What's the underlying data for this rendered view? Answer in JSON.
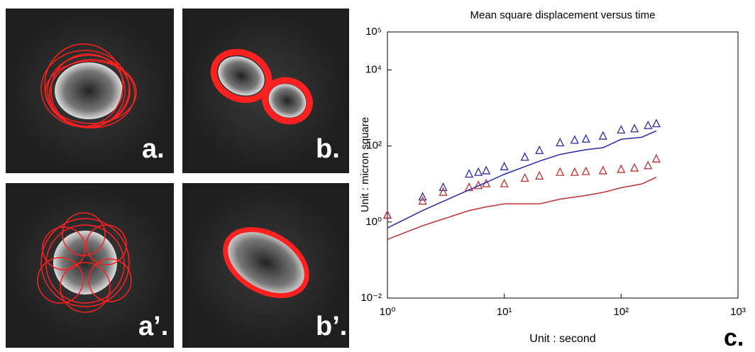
{
  "panels": {
    "a": "a.",
    "b": "b.",
    "a2": "a’.",
    "b2": "b’.",
    "c": "c."
  },
  "chart_data": {
    "type": "scatter",
    "title": "Mean square displacement versus time",
    "x_label": "Unit : second",
    "y_label": "Unit : micron square",
    "log_x": true,
    "log_y": true,
    "xlim": [
      1,
      1000
    ],
    "ylim": [
      0.01,
      100000
    ],
    "xticks": [
      {
        "value": 1,
        "label": "10⁰"
      },
      {
        "value": 10,
        "label": "10¹"
      },
      {
        "value": 100,
        "label": "10²"
      },
      {
        "value": 1000,
        "label": "10³"
      }
    ],
    "yticks": [
      {
        "value": 0.01,
        "label": "10⁻²"
      },
      {
        "value": 1,
        "label": "10⁰"
      },
      {
        "value": 100,
        "label": "10²"
      },
      {
        "value": 10000,
        "label": "10⁴"
      },
      {
        "value": 100000,
        "label": "10⁵"
      }
    ],
    "series": [
      {
        "color": "#2a2aa8",
        "marker": "triangle",
        "x": [
          1,
          2,
          3,
          5,
          6,
          7,
          10,
          15,
          20,
          30,
          40,
          50,
          70,
          100,
          130,
          170,
          200
        ],
        "values": [
          1.5,
          4.5,
          8,
          18,
          20,
          22,
          28,
          50,
          75,
          120,
          140,
          150,
          180,
          260,
          280,
          340,
          380
        ]
      },
      {
        "color": "#c03030",
        "marker": "triangle",
        "x": [
          1,
          2,
          3,
          5,
          6,
          7,
          10,
          15,
          20,
          30,
          40,
          50,
          70,
          100,
          130,
          170,
          200
        ],
        "values": [
          1.5,
          3.5,
          6,
          8,
          9,
          10,
          10,
          14,
          16,
          20,
          20,
          21,
          22,
          24,
          26,
          30,
          45
        ]
      },
      {
        "color": "#2a2aa8",
        "marker": "line",
        "x": [
          1,
          2,
          3,
          5,
          7,
          10,
          20,
          30,
          50,
          70,
          100,
          150,
          200
        ],
        "values": [
          0.7,
          2,
          3.5,
          7,
          11,
          18,
          40,
          60,
          80,
          90,
          150,
          170,
          250
        ]
      },
      {
        "color": "#c03030",
        "marker": "line",
        "x": [
          1,
          2,
          3,
          5,
          7,
          10,
          20,
          30,
          50,
          70,
          100,
          150,
          200
        ],
        "values": [
          0.35,
          0.8,
          1.2,
          2,
          2.5,
          3,
          3,
          4,
          5,
          6,
          8,
          10,
          15
        ]
      }
    ]
  }
}
